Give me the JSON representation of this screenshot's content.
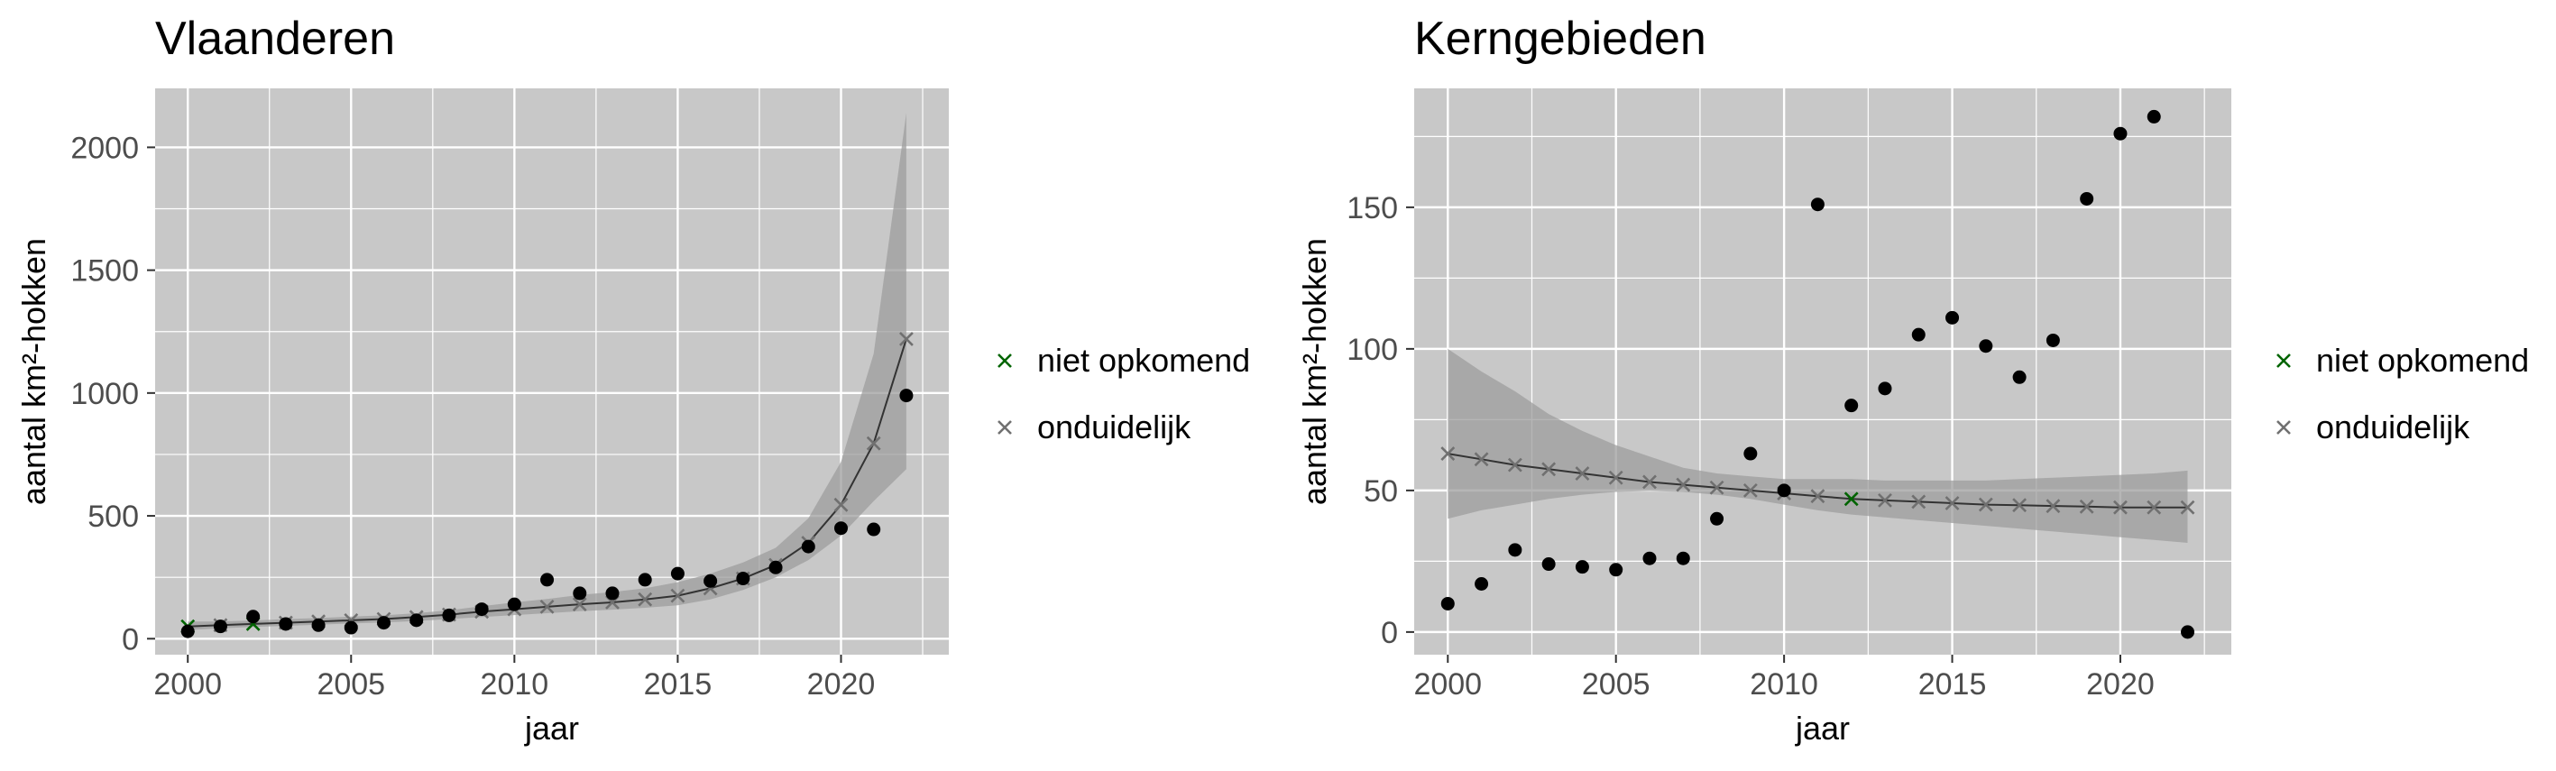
{
  "chart_data": [
    {
      "type": "scatter",
      "title": "Vlaanderen",
      "xlabel": "jaar",
      "ylabel": "aantal km²-hokken",
      "xlim": [
        1999,
        2023.3
      ],
      "ylim": [
        -65,
        2240
      ],
      "xticks": [
        "2000",
        "2005",
        "2010",
        "2015",
        "2020"
      ],
      "yticks": [
        "0",
        "500",
        "1000",
        "1500",
        "2000"
      ],
      "grid": true,
      "legend": "right",
      "observed": {
        "x": [
          2000,
          2001,
          2002,
          2003,
          2004,
          2005,
          2006,
          2007,
          2008,
          2009,
          2010,
          2011,
          2012,
          2013,
          2014,
          2015,
          2016,
          2017,
          2018,
          2019,
          2020,
          2021,
          2022
        ],
        "y": [
          30,
          50,
          90,
          60,
          55,
          45,
          65,
          75,
          95,
          120,
          140,
          240,
          185,
          185,
          240,
          265,
          235,
          245,
          290,
          375,
          450,
          445,
          990
        ]
      },
      "fit": {
        "x": [
          2000,
          2001,
          2002,
          2003,
          2004,
          2005,
          2006,
          2007,
          2008,
          2009,
          2010,
          2011,
          2012,
          2013,
          2014,
          2015,
          2016,
          2017,
          2018,
          2019,
          2020,
          2021,
          2022
        ],
        "y": [
          50,
          55,
          60,
          65,
          70,
          75,
          80,
          88,
          98,
          110,
          120,
          130,
          140,
          148,
          160,
          175,
          205,
          245,
          300,
          390,
          545,
          795,
          1220
        ],
        "lower": [
          35,
          42,
          48,
          52,
          57,
          62,
          66,
          72,
          80,
          88,
          96,
          104,
          112,
          118,
          126,
          136,
          160,
          198,
          250,
          320,
          420,
          560,
          690
        ],
        "upper": [
          70,
          70,
          74,
          80,
          84,
          90,
          95,
          104,
          116,
          132,
          148,
          162,
          178,
          190,
          205,
          230,
          265,
          310,
          370,
          490,
          720,
          1160,
          2140
        ],
        "category": [
          "niet opkomend",
          "onduidelijk",
          "niet opkomend",
          "onduidelijk",
          "onduidelijk",
          "onduidelijk",
          "onduidelijk",
          "onduidelijk",
          "onduidelijk",
          "onduidelijk",
          "onduidelijk",
          "onduidelijk",
          "onduidelijk",
          "onduidelijk",
          "onduidelijk",
          "onduidelijk",
          "onduidelijk",
          "onduidelijk",
          "onduidelijk",
          "onduidelijk",
          "onduidelijk",
          "onduidelijk",
          "onduidelijk"
        ]
      },
      "legend_entries": [
        {
          "label": "niet opkomend",
          "color": "#006400"
        },
        {
          "label": "onduidelijk",
          "color": "#707070"
        }
      ]
    },
    {
      "type": "scatter",
      "title": "Kerngebieden",
      "xlabel": "jaar",
      "ylabel": "aantal km²-hokken",
      "xlim": [
        1999,
        2023.3
      ],
      "ylim": [
        -8,
        192
      ],
      "xticks": [
        "2000",
        "2005",
        "2010",
        "2015",
        "2020"
      ],
      "yticks": [
        "0",
        "50",
        "100",
        "150"
      ],
      "grid": true,
      "legend": "right",
      "observed": {
        "x": [
          2000,
          2001,
          2002,
          2003,
          2004,
          2005,
          2006,
          2007,
          2008,
          2009,
          2010,
          2011,
          2012,
          2013,
          2014,
          2015,
          2016,
          2017,
          2018,
          2019,
          2020,
          2021,
          2022
        ],
        "y": [
          10,
          17,
          29,
          24,
          23,
          22,
          26,
          26,
          40,
          63,
          50,
          151,
          80,
          86,
          105,
          111,
          101,
          90,
          103,
          153,
          176,
          182,
          0
        ]
      },
      "fit": {
        "x": [
          2000,
          2001,
          2002,
          2003,
          2004,
          2005,
          2006,
          2007,
          2008,
          2009,
          2010,
          2011,
          2012,
          2013,
          2014,
          2015,
          2016,
          2017,
          2018,
          2019,
          2020,
          2021,
          2022
        ],
        "y": [
          63,
          61,
          59,
          57.5,
          56,
          54.5,
          53,
          52,
          51,
          50,
          49,
          48,
          47,
          46.5,
          46,
          45.5,
          45,
          44.8,
          44.5,
          44.3,
          44,
          44,
          44
        ],
        "lower": [
          40,
          43,
          45,
          47,
          48.5,
          49.5,
          49.8,
          49.5,
          48.5,
          47,
          45,
          43,
          41.5,
          40.5,
          39.5,
          38.5,
          37.5,
          36.5,
          35.5,
          34.5,
          33.5,
          32.5,
          31.5
        ],
        "upper": [
          100,
          92,
          85,
          77,
          71,
          66,
          62,
          58,
          56,
          55,
          54,
          54,
          54,
          53.5,
          53.5,
          53.5,
          53.5,
          54,
          54.5,
          55,
          55.5,
          56,
          57
        ],
        "category": [
          "onduidelijk",
          "onduidelijk",
          "onduidelijk",
          "onduidelijk",
          "onduidelijk",
          "onduidelijk",
          "onduidelijk",
          "onduidelijk",
          "onduidelijk",
          "onduidelijk",
          "onduidelijk",
          "onduidelijk",
          "niet opkomend",
          "onduidelijk",
          "onduidelijk",
          "onduidelijk",
          "onduidelijk",
          "onduidelijk",
          "onduidelijk",
          "onduidelijk",
          "onduidelijk",
          "onduidelijk",
          "onduidelijk"
        ]
      },
      "legend_entries": [
        {
          "label": "niet opkomend",
          "color": "#006400"
        },
        {
          "label": "onduidelijk",
          "color": "#707070"
        }
      ]
    }
  ],
  "colors": {
    "panel_background": "#c8c8c8",
    "grid": "#ffffff",
    "ribbon": "#9e9e9e",
    "fit_line": "#333333",
    "observed_point": "#000000",
    "niet_opkomend": "#006400",
    "onduidelijk": "#707070"
  }
}
